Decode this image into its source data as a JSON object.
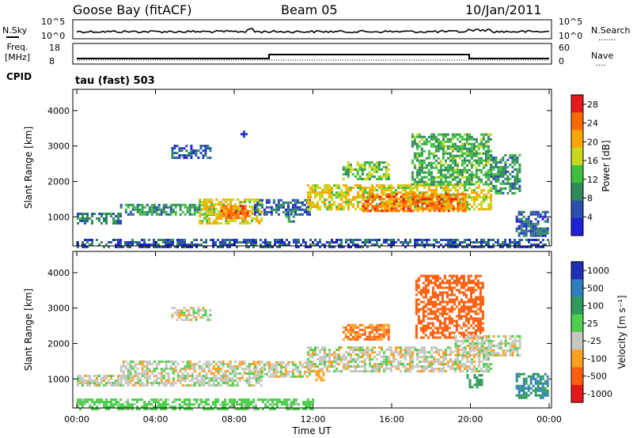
{
  "header": {
    "station": "Goose Bay (fitACF)",
    "beam": "Beam 05",
    "date": "10/Jan/2011"
  },
  "strips": {
    "nsky_label": "N.Sky",
    "nsearch_label": "N.Search",
    "nsearch_mark": ".......",
    "noise_ticks": [
      "10^5",
      "10^0"
    ],
    "freq_label": "Freq.",
    "freq_unit": "[MHz]",
    "freq_ticks": [
      "18",
      "8"
    ],
    "nave_label": "Nave",
    "nave_mark": "....",
    "nave_ticks": [
      "60",
      "0"
    ],
    "cpid_label": "CPID",
    "cpid_value": "tau (fast) 503"
  },
  "colors": {
    "trace": "#000000",
    "ground_scatter": "#c8c8c0",
    "power_scale": [
      "#1f1fd6",
      "#2a4fb0",
      "#2f8a5a",
      "#3fbf3f",
      "#c8d81e",
      "#ffa500",
      "#ff6a00",
      "#e31a1c"
    ],
    "velocity_scale": [
      "#1f2fb8",
      "#2f7fbf",
      "#2f9a5a",
      "#4fd04f",
      "#c8c8c0",
      "#ffa020",
      "#ff6010",
      "#e31a1c"
    ]
  },
  "chart_data": [
    {
      "type": "heatmap",
      "name": "power",
      "ylabel": "Slant Range [km]",
      "y_ticks": [
        "1000",
        "2000",
        "3000",
        "4000"
      ],
      "x_ticks": [
        "00:00",
        "04:00",
        "08:00",
        "12:00",
        "16:00",
        "20:00",
        "00:00"
      ],
      "xlim": [
        0,
        24
      ],
      "ylim": [
        180,
        4600
      ],
      "colorbar_label": "Power [dB]",
      "colorbar_ticks": [
        "4",
        "8",
        "12",
        "16",
        "20",
        "24",
        "28"
      ],
      "colorbar_range": [
        0,
        30
      ],
      "regions": [
        {
          "t0": 0.0,
          "t1": 2.2,
          "r0": 850,
          "r1": 1150,
          "value": 8
        },
        {
          "t0": 2.2,
          "t1": 7.0,
          "r0": 1100,
          "r1": 1400,
          "value": 10
        },
        {
          "t0": 4.8,
          "t1": 6.8,
          "r0": 2700,
          "r1": 3100,
          "value": 6
        },
        {
          "t0": 6.2,
          "t1": 9.4,
          "r0": 850,
          "r1": 1550,
          "value": 18
        },
        {
          "t0": 7.3,
          "t1": 8.7,
          "r0": 1000,
          "r1": 1400,
          "value": 24
        },
        {
          "t0": 8.2,
          "t1": 8.6,
          "r0": 3300,
          "r1": 3500,
          "value": 4
        },
        {
          "t0": 9.0,
          "t1": 11.8,
          "r0": 1100,
          "r1": 1550,
          "value": 6
        },
        {
          "t0": 10.6,
          "t1": 11.0,
          "r0": 900,
          "r1": 1200,
          "value": 10
        },
        {
          "t0": 11.7,
          "t1": 21.0,
          "r0": 1250,
          "r1": 1950,
          "value": 18
        },
        {
          "t0": 14.5,
          "t1": 19.8,
          "r0": 1200,
          "r1": 1700,
          "value": 24
        },
        {
          "t0": 13.5,
          "t1": 15.8,
          "r0": 2100,
          "r1": 2600,
          "value": 14
        },
        {
          "t0": 17.0,
          "t1": 21.0,
          "r0": 1950,
          "r1": 3400,
          "value": 12
        },
        {
          "t0": 21.0,
          "t1": 22.5,
          "r0": 1700,
          "r1": 2800,
          "value": 10
        },
        {
          "t0": 22.3,
          "t1": 23.9,
          "r0": 500,
          "r1": 1200,
          "value": 6
        },
        {
          "t0": 0.0,
          "t1": 24.0,
          "r0": 180,
          "r1": 420,
          "value": 6
        }
      ]
    },
    {
      "type": "heatmap",
      "name": "velocity",
      "ylabel": "Slant Range [km]",
      "y_ticks": [
        "1000",
        "2000",
        "3000",
        "4000"
      ],
      "x_ticks": [
        "00:00",
        "04:00",
        "08:00",
        "12:00",
        "16:00",
        "20:00",
        "00:00"
      ],
      "xlabel": "Time UT",
      "xlim": [
        0,
        24
      ],
      "ylim": [
        180,
        4600
      ],
      "colorbar_label": "Velocity [m s⁻¹]",
      "colorbar_ticks": [
        "1000",
        "500",
        "100",
        "25",
        "-25",
        "-100",
        "-500",
        "-1000"
      ],
      "regions": [
        {
          "t0": 0.0,
          "t1": 2.2,
          "r0": 850,
          "r1": 1150,
          "value": 0
        },
        {
          "t0": 2.2,
          "t1": 9.4,
          "r0": 850,
          "r1": 1550,
          "value": 0
        },
        {
          "t0": 4.8,
          "t1": 6.8,
          "r0": 2700,
          "r1": 3100,
          "value": 0
        },
        {
          "t0": 9.0,
          "t1": 11.8,
          "r0": 1100,
          "r1": 1550,
          "value": 0
        },
        {
          "t0": 11.7,
          "t1": 21.0,
          "r0": 1250,
          "r1": 1950,
          "value": 0
        },
        {
          "t0": 13.5,
          "t1": 15.8,
          "r0": 2150,
          "r1": 2600,
          "value": -200
        },
        {
          "t0": 17.2,
          "t1": 20.6,
          "r0": 2200,
          "r1": 4000,
          "value": -300
        },
        {
          "t0": 19.2,
          "t1": 22.5,
          "r0": 1700,
          "r1": 2300,
          "value": 0
        },
        {
          "t0": 12.0,
          "t1": 12.6,
          "r0": 1000,
          "r1": 1300,
          "value": -150
        },
        {
          "t0": 19.8,
          "t1": 20.6,
          "r0": 800,
          "r1": 1200,
          "value": 200
        },
        {
          "t0": 22.3,
          "t1": 23.9,
          "r0": 500,
          "r1": 1200,
          "value": 300
        },
        {
          "t0": 0.0,
          "t1": 12.0,
          "r0": 180,
          "r1": 500,
          "value": 60
        }
      ]
    }
  ]
}
